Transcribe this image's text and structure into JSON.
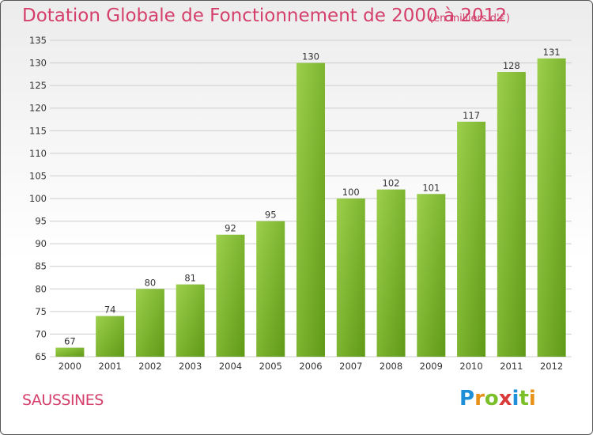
{
  "title": "Dotation Globale de Fonctionnement de 2000 à 2012",
  "subtitle": "(en milliers d'€)",
  "commune": "SAUSSINES",
  "logo": {
    "text": "Proxiti",
    "letters": [
      "P",
      "r",
      "o",
      "x",
      "i",
      "t",
      "i"
    ],
    "colors": [
      "#1f8fd8",
      "#e8911a",
      "#7bbf2a",
      "#d93a3a",
      "#1f8fd8",
      "#7bbf2a",
      "#e8911a"
    ]
  },
  "colors": {
    "bar_light": "#9ccf4c",
    "bar_dark": "#5f9a16",
    "text_accent": "#d43f6b"
  },
  "chart_data": {
    "type": "bar",
    "categories": [
      "2000",
      "2001",
      "2002",
      "2003",
      "2004",
      "2005",
      "2006",
      "2007",
      "2008",
      "2009",
      "2010",
      "2011",
      "2012"
    ],
    "values": [
      67,
      74,
      80,
      81,
      92,
      95,
      130,
      100,
      102,
      101,
      117,
      128,
      131
    ],
    "title": "Dotation Globale de Fonctionnement de 2000 à 2012",
    "subtitle": "(en milliers d'€)",
    "ylim": [
      65,
      135
    ],
    "yticks": [
      65,
      70,
      75,
      80,
      85,
      90,
      95,
      100,
      105,
      110,
      115,
      120,
      125,
      130,
      135
    ],
    "grid": true,
    "legend": "none"
  }
}
